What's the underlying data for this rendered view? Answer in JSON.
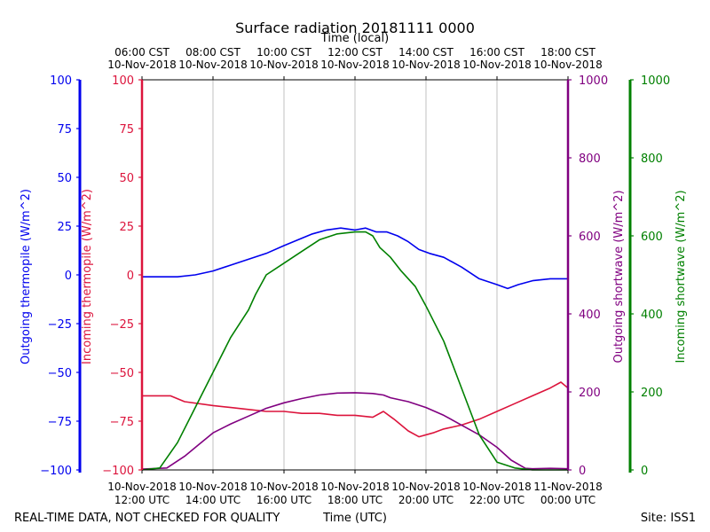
{
  "chart_data": {
    "type": "line",
    "title": "Surface radiation 20181111 0000",
    "top_axis_label": "Time (local)",
    "bottom_axis_label": "Time (UTC)",
    "footer_left": "REAL-TIME DATA, NOT CHECKED FOR QUALITY",
    "footer_right": "Site: ISS1",
    "x_range_hours": [
      12,
      24
    ],
    "top_ticks": [
      {
        "hour": 12,
        "line1": "06:00 CST",
        "line2": "10-Nov-2018"
      },
      {
        "hour": 14,
        "line1": "08:00 CST",
        "line2": "10-Nov-2018"
      },
      {
        "hour": 16,
        "line1": "10:00 CST",
        "line2": "10-Nov-2018"
      },
      {
        "hour": 18,
        "line1": "12:00 CST",
        "line2": "10-Nov-2018"
      },
      {
        "hour": 20,
        "line1": "14:00 CST",
        "line2": "10-Nov-2018"
      },
      {
        "hour": 22,
        "line1": "16:00 CST",
        "line2": "10-Nov-2018"
      },
      {
        "hour": 24,
        "line1": "18:00 CST",
        "line2": "10-Nov-2018"
      }
    ],
    "bottom_ticks": [
      {
        "hour": 12,
        "line1": "10-Nov-2018",
        "line2": "12:00 UTC"
      },
      {
        "hour": 14,
        "line1": "10-Nov-2018",
        "line2": "14:00 UTC"
      },
      {
        "hour": 16,
        "line1": "10-Nov-2018",
        "line2": "16:00 UTC"
      },
      {
        "hour": 18,
        "line1": "10-Nov-2018",
        "line2": "18:00 UTC"
      },
      {
        "hour": 20,
        "line1": "10-Nov-2018",
        "line2": "20:00 UTC"
      },
      {
        "hour": 22,
        "line1": "10-Nov-2018",
        "line2": "22:00 UTC"
      },
      {
        "hour": 24,
        "line1": "11-Nov-2018",
        "line2": "00:00 UTC"
      }
    ],
    "axes": {
      "outgoing_thermopile": {
        "label": "Outgoing thermopile (W/m^2)",
        "color": "#0000ee",
        "ylim": [
          -100,
          100
        ],
        "ticks": [
          -100,
          -75,
          -50,
          -25,
          0,
          25,
          50,
          75,
          100
        ]
      },
      "incoming_thermopile": {
        "label": "Incoming thermopile (W/m^2)",
        "color": "#dc143c",
        "ylim": [
          -100,
          100
        ],
        "ticks": [
          -100,
          -75,
          -50,
          -25,
          0,
          25,
          50,
          75,
          100
        ]
      },
      "outgoing_shortwave": {
        "label": "Outgoing shortwave (W/m^2)",
        "color": "#800080",
        "ylim": [
          0,
          1000
        ],
        "ticks": [
          0,
          200,
          400,
          600,
          800,
          1000
        ]
      },
      "incoming_shortwave": {
        "label": "Incoming shortwave (W/m^2)",
        "color": "#008000",
        "ylim": [
          0,
          1000
        ],
        "ticks": [
          0,
          200,
          400,
          600,
          800,
          1000
        ]
      }
    },
    "series": [
      {
        "name": "Outgoing thermopile",
        "axis": "outgoing_thermopile",
        "color": "#0000ee",
        "x": [
          12.0,
          12.5,
          13.0,
          13.5,
          14.0,
          14.5,
          15.0,
          15.5,
          16.0,
          16.4,
          16.8,
          17.2,
          17.6,
          18.0,
          18.3,
          18.6,
          18.9,
          19.2,
          19.5,
          19.8,
          20.1,
          20.5,
          21.0,
          21.5,
          22.0,
          22.3,
          22.6,
          23.0,
          23.5,
          24.0
        ],
        "y": [
          -1,
          -1,
          -1,
          0,
          2,
          5,
          8,
          11,
          15,
          18,
          21,
          23,
          24,
          23,
          24,
          22,
          22,
          20,
          17,
          13,
          11,
          9,
          4,
          -2,
          -5,
          -7,
          -5,
          -3,
          -2,
          -2
        ]
      },
      {
        "name": "Incoming thermopile",
        "axis": "incoming_thermopile",
        "color": "#dc143c",
        "x": [
          12.0,
          12.8,
          13.2,
          14.0,
          14.5,
          15.0,
          15.5,
          16.0,
          16.5,
          17.0,
          17.5,
          18.0,
          18.5,
          18.8,
          19.1,
          19.5,
          19.8,
          20.2,
          20.5,
          21.0,
          21.5,
          22.0,
          22.5,
          23.0,
          23.5,
          23.8,
          24.0
        ],
        "y": [
          -62,
          -62,
          -65,
          -67,
          -68,
          -69,
          -70,
          -70,
          -71,
          -71,
          -72,
          -72,
          -73,
          -70,
          -74,
          -80,
          -83,
          -81,
          -79,
          -77,
          -74,
          -70,
          -66,
          -62,
          -58,
          -55,
          -58
        ]
      },
      {
        "name": "Outgoing shortwave",
        "axis": "outgoing_shortwave",
        "color": "#800080",
        "x": [
          12.0,
          12.7,
          13.2,
          13.6,
          14.0,
          14.5,
          15.0,
          15.5,
          16.0,
          16.5,
          17.0,
          17.5,
          18.0,
          18.5,
          18.8,
          19.0,
          19.5,
          20.0,
          20.5,
          21.0,
          21.5,
          22.0,
          22.4,
          22.8,
          23.0,
          23.5,
          24.0
        ],
        "y": [
          2,
          5,
          35,
          65,
          95,
          118,
          138,
          158,
          172,
          183,
          192,
          197,
          198,
          196,
          192,
          185,
          175,
          160,
          140,
          115,
          90,
          58,
          25,
          4,
          3,
          4,
          3
        ]
      },
      {
        "name": "Incoming shortwave",
        "axis": "incoming_shortwave",
        "color": "#008000",
        "x": [
          12.0,
          12.5,
          13.0,
          13.5,
          14.0,
          14.5,
          15.0,
          15.2,
          15.5,
          16.0,
          16.5,
          17.0,
          17.5,
          18.0,
          18.3,
          18.5,
          18.7,
          19.0,
          19.3,
          19.7,
          20.0,
          20.5,
          21.0,
          21.5,
          22.0,
          22.5,
          23.0,
          23.5,
          24.0
        ],
        "y": [
          0,
          5,
          70,
          160,
          250,
          340,
          410,
          450,
          500,
          530,
          560,
          590,
          605,
          610,
          610,
          600,
          570,
          545,
          510,
          470,
          420,
          330,
          210,
          90,
          20,
          5,
          0,
          0,
          0
        ]
      }
    ]
  }
}
